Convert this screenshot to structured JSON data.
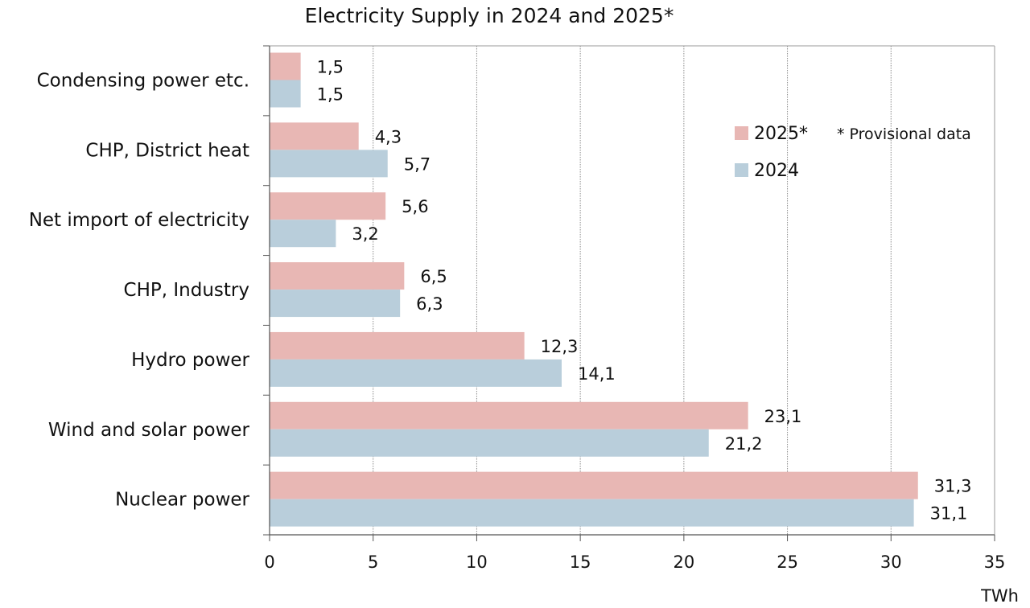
{
  "chart_data": {
    "type": "bar",
    "orientation": "horizontal",
    "title": "Electricity Supply in 2024 and 2025*",
    "xlabel": "TWh",
    "ylabel": "",
    "xlim": [
      0,
      35
    ],
    "xticks": [
      0,
      5,
      10,
      15,
      20,
      25,
      30,
      35
    ],
    "grid": "vertical",
    "legend_position": "top-right",
    "footnote": "* Provisional data",
    "categories": [
      "Condensing power etc.",
      "CHP, District heat",
      "Net import of electricity",
      "CHP, Industry",
      "Hydro power",
      "Wind and solar power",
      "Nuclear power"
    ],
    "series": [
      {
        "name": "2025*",
        "color": "#e8b7b4",
        "values": [
          1.5,
          4.3,
          5.6,
          6.5,
          12.3,
          23.1,
          31.3
        ],
        "labels": [
          "1,5",
          "4,3",
          "5,6",
          "6,5",
          "12,3",
          "23,1",
          "31,3"
        ]
      },
      {
        "name": "2024",
        "color": "#b9cedb",
        "values": [
          1.5,
          5.7,
          3.2,
          6.3,
          14.1,
          21.2,
          31.1
        ],
        "labels": [
          "1,5",
          "5,7",
          "3,2",
          "6,3",
          "14,1",
          "21,2",
          "31,1"
        ]
      }
    ]
  }
}
